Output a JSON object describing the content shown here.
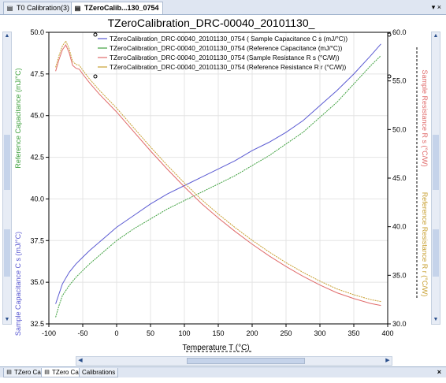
{
  "tabs": [
    {
      "label": "T0 Calibration(3)",
      "active": false
    },
    {
      "label": "TZeroCalib...130_0754",
      "active": true
    }
  ],
  "tab_controls": "▾ ×",
  "bottom_tabs": [
    {
      "label": "TZero Cal",
      "active": false
    },
    {
      "label": "TZero Cal",
      "active": true
    },
    {
      "label": "Calibrations",
      "active": false
    }
  ],
  "bottom_close": "×",
  "colors": {
    "sample_capacitance": "#5a5ad2",
    "reference_capacitance": "#3ea03e",
    "sample_resistance": "#e06a6a",
    "reference_resistance": "#c8a032",
    "accent": "#2a4f8c"
  },
  "icons": {
    "tab": "document-icon",
    "scroll_up": "arrow-up-icon",
    "scroll_down": "arrow-down-icon",
    "scroll_left": "arrow-left-icon",
    "scroll_right": "arrow-right-icon"
  },
  "chart_data": {
    "type": "line",
    "title": "TZeroCalibration_DRC-00040_20101130_",
    "xlabel": "Temperature  T (°C)",
    "ylabel_left": "Sample Capacitance  C s  (mJ/°C)",
    "ylabel_left2": "Reference Capacitance  (mJ/°C)",
    "ylabel_right": "Sample Resistance  R s  (°C/W)",
    "ylabel_right2": "Reference Resistance  R r  (°C/W)",
    "xlim": [
      -100,
      400
    ],
    "ylim_left": [
      32.5,
      50.0
    ],
    "ylim_right": [
      30.0,
      60.0
    ],
    "x_ticks": [
      "-100",
      "-50",
      "0",
      "50",
      "100",
      "150",
      "200",
      "250",
      "300",
      "350",
      "400"
    ],
    "y_left_ticks": [
      "50.0",
      "47.5",
      "45.0",
      "42.5",
      "40.0",
      "37.5",
      "35.0",
      "32.5"
    ],
    "y_right_ticks": [
      "60.0",
      "55.0",
      "50.0",
      "45.0",
      "40.0",
      "35.0",
      "30.0"
    ],
    "grid": true,
    "legend_position": "top-center",
    "series": [
      {
        "name": "TZeroCalibration_DRC-00040_20101130_0754 ( Sample Capacitance  C s  (mJ/°C))",
        "axis": "left",
        "x": [
          -90,
          -85,
          -80,
          -70,
          -60,
          -50,
          -40,
          -20,
          0,
          25,
          50,
          75,
          100,
          125,
          150,
          175,
          200,
          225,
          250,
          275,
          300,
          325,
          350,
          375,
          390
        ],
        "y": [
          33.7,
          34.3,
          34.9,
          35.6,
          36.1,
          36.5,
          36.9,
          37.6,
          38.3,
          39.0,
          39.7,
          40.3,
          40.8,
          41.3,
          41.8,
          42.3,
          42.9,
          43.4,
          44.0,
          44.7,
          45.6,
          46.5,
          47.5,
          48.6,
          49.3
        ]
      },
      {
        "name": "TZeroCalibration_DRC-00040_20101130_0754 (Reference Capacitance  (mJ/°C))",
        "axis": "left",
        "x": [
          -90,
          -85,
          -80,
          -70,
          -60,
          -50,
          -40,
          -20,
          0,
          25,
          50,
          75,
          100,
          125,
          150,
          175,
          200,
          225,
          250,
          275,
          300,
          325,
          350,
          375,
          390
        ],
        "y": [
          32.9,
          33.6,
          34.2,
          34.8,
          35.3,
          35.7,
          36.1,
          36.8,
          37.5,
          38.2,
          38.8,
          39.4,
          39.9,
          40.4,
          40.9,
          41.4,
          42.0,
          42.6,
          43.3,
          44.0,
          44.9,
          45.8,
          46.9,
          48.0,
          48.6
        ]
      },
      {
        "name": "TZeroCalibration_DRC-00040_20101130_0754 (Sample Resistance  R s  (°C/W))",
        "axis": "right",
        "x": [
          -90,
          -85,
          -80,
          -75,
          -70,
          -65,
          -60,
          -55,
          -50,
          -40,
          -25,
          0,
          25,
          50,
          75,
          100,
          125,
          150,
          175,
          200,
          225,
          250,
          275,
          300,
          325,
          350,
          375,
          390
        ],
        "y": [
          56.0,
          57.2,
          58.2,
          58.7,
          57.9,
          56.6,
          56.3,
          56.2,
          55.7,
          54.8,
          53.6,
          51.8,
          49.8,
          47.8,
          45.9,
          44.1,
          42.4,
          40.9,
          39.5,
          38.2,
          37.0,
          35.9,
          34.9,
          34.0,
          33.2,
          32.6,
          32.1,
          31.9
        ]
      },
      {
        "name": "TZeroCalibration_DRC-00040_20101130_0754 (Reference Resistance  R r  (°C/W))",
        "axis": "right",
        "x": [
          -90,
          -85,
          -80,
          -75,
          -70,
          -65,
          -60,
          -55,
          -50,
          -40,
          -25,
          0,
          25,
          50,
          75,
          100,
          125,
          150,
          175,
          200,
          225,
          250,
          275,
          300,
          325,
          350,
          375,
          390
        ],
        "y": [
          56.4,
          57.6,
          58.6,
          59.1,
          58.3,
          57.0,
          56.7,
          56.6,
          56.1,
          55.2,
          54.0,
          52.2,
          50.2,
          48.2,
          46.3,
          44.5,
          42.8,
          41.3,
          39.9,
          38.6,
          37.4,
          36.3,
          35.3,
          34.4,
          33.6,
          33.0,
          32.5,
          32.3
        ]
      }
    ]
  }
}
